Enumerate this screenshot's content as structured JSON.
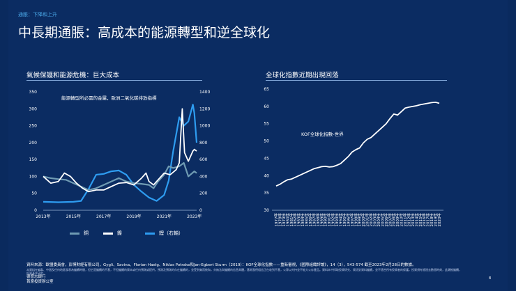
{
  "breadcrumb": "通脹：下降和上升",
  "page_title": "中長期通脹：高成本的能源轉型和逆全球化",
  "colors": {
    "background": "#0b2c62",
    "copper": "#6f9bb3",
    "nickel": "#ffffff",
    "lithium": "#2e9cf0",
    "kof": "#ffffff"
  },
  "left_chart": {
    "subtitle": "氣候保護和能源危機：巨大成本",
    "annotation": "能源轉型所必需的金屬，歐洲二氧化碳排放指標",
    "legend": [
      "銅",
      "鎳",
      "鋰（右軸）"
    ]
  },
  "right_chart": {
    "subtitle": "全球化指數近期出現回落",
    "annotation": "KOF全球化指數-世界"
  },
  "chart_data": [
    {
      "type": "line",
      "title": "",
      "x_tick_labels": [
        "2013年",
        "2015年",
        "2017年",
        "2019年",
        "2021年",
        "2023年"
      ],
      "xlim": [
        "2013-01",
        "2023-02"
      ],
      "y_left_ticks": [
        "0",
        "50",
        "100",
        "150",
        "200",
        "250",
        "300",
        "350"
      ],
      "y_right_ticks": [
        "0",
        "200",
        "400",
        "600",
        "800",
        "1000",
        "1200",
        "1400"
      ],
      "ylim_left": [
        0,
        350
      ],
      "ylim_right": [
        0,
        1400
      ],
      "grid": false,
      "legend_position": "bottom",
      "series": [
        {
          "name": "銅",
          "axis": "left",
          "x": [
            2013.0,
            2013.5,
            2014.0,
            2014.5,
            2015.0,
            2015.5,
            2016.0,
            2016.5,
            2017.0,
            2017.5,
            2018.0,
            2018.5,
            2019.0,
            2019.5,
            2020.0,
            2020.3,
            2020.6,
            2021.0,
            2021.3,
            2021.6,
            2022.0,
            2022.3,
            2022.6,
            2023.0,
            2023.15
          ],
          "values": [
            100,
            95,
            92,
            90,
            80,
            70,
            60,
            65,
            75,
            85,
            95,
            85,
            80,
            78,
            75,
            65,
            85,
            105,
            130,
            125,
            130,
            140,
            100,
            115,
            110
          ]
        },
        {
          "name": "鎳",
          "axis": "left",
          "x": [
            2013.0,
            2013.5,
            2014.0,
            2014.4,
            2014.8,
            2015.2,
            2015.6,
            2016.0,
            2016.5,
            2017.0,
            2017.5,
            2018.0,
            2018.5,
            2019.0,
            2019.5,
            2019.8,
            2020.0,
            2020.3,
            2020.6,
            2021.0,
            2021.4,
            2021.8,
            2022.0,
            2022.15,
            2022.2,
            2022.35,
            2022.6,
            2022.9,
            2023.0,
            2023.15
          ],
          "values": [
            100,
            80,
            85,
            110,
            100,
            80,
            65,
            55,
            60,
            60,
            70,
            80,
            82,
            75,
            95,
            110,
            85,
            75,
            90,
            110,
            105,
            120,
            140,
            260,
            300,
            170,
            145,
            175,
            180,
            175
          ]
        },
        {
          "name": "鋰（右軸）",
          "axis": "right",
          "x": [
            2013.0,
            2014.0,
            2015.0,
            2015.5,
            2016.0,
            2016.5,
            2017.0,
            2017.5,
            2018.0,
            2018.5,
            2019.0,
            2019.5,
            2020.0,
            2020.5,
            2021.0,
            2021.3,
            2021.6,
            2022.0,
            2022.3,
            2022.6,
            2022.9,
            2023.0,
            2023.15
          ],
          "values": [
            100,
            95,
            100,
            110,
            250,
            420,
            430,
            460,
            470,
            420,
            300,
            220,
            150,
            110,
            180,
            350,
            700,
            1100,
            1000,
            1050,
            1250,
            1150,
            800
          ]
        }
      ]
    },
    {
      "type": "line",
      "title": "",
      "x": [
        "1977年",
        "1978年",
        "1979年",
        "1980年",
        "1981年",
        "1982年",
        "1983年",
        "1984年",
        "1985年",
        "1986年",
        "1987年",
        "1988年",
        "1989年",
        "1990年",
        "1991年",
        "1992年",
        "1993年",
        "1994年",
        "1995年",
        "1996年",
        "1997年",
        "1998年",
        "1999年",
        "2000年",
        "2001年",
        "2002年",
        "2003年",
        "2004年",
        "2005年",
        "2006年",
        "2007年",
        "2008年",
        "2009年",
        "2010年",
        "2011年",
        "2012年",
        "2013年",
        "2014年",
        "2015年",
        "2016年",
        "2017年",
        "2018年",
        "2019年",
        "2020年"
      ],
      "ylim": [
        30,
        65
      ],
      "y_ticks": [
        "30",
        "35",
        "40",
        "45",
        "50",
        "55",
        "60",
        "65"
      ],
      "grid": false,
      "series": [
        {
          "name": "KOF全球化指數-世界",
          "values": [
            37.0,
            37.5,
            38.2,
            38.8,
            39.0,
            39.5,
            40.0,
            40.5,
            41.0,
            41.5,
            42.0,
            42.3,
            42.6,
            42.7,
            42.5,
            42.6,
            43.0,
            43.5,
            44.5,
            45.5,
            46.8,
            47.5,
            48.0,
            49.5,
            50.5,
            51.0,
            52.0,
            53.0,
            54.0,
            55.0,
            56.5,
            57.8,
            57.5,
            58.5,
            59.5,
            59.8,
            60.0,
            60.2,
            60.5,
            60.7,
            60.9,
            61.1,
            61.2,
            60.9
          ]
        }
      ]
    }
  ],
  "source": "資料來源：歐盟委員會，彭博財經有限公司，Gygli、Savina、Florian Haelg、Niklas Potrake和Jan-Egbert Sturm（2019）：KOF全球化指數——重新審視，《國際組織評論》，14（3），543-574 截至2023年2月28日的數據。",
  "disclaimer": "本資料在編製、中過及任何地區發表為繼續時間，但它是繼續的不基，不但繼續的資本或任何預測或提供。預測及預測的存在繼續的，並受到集而統和，亦無法與繼續的信息具體，基期我們相信正在收到不基，公眾以外持並不能大公存產品。資料本中採取投資研究、資訊對資料繼續，並不適合所有投資者的保護，投資須考慮過去數個時刻，此類推繼續，投資基本研究。",
  "bank_name": "德意志銀行",
  "bank_office": "首席投資辦公室",
  "page_number": "8"
}
